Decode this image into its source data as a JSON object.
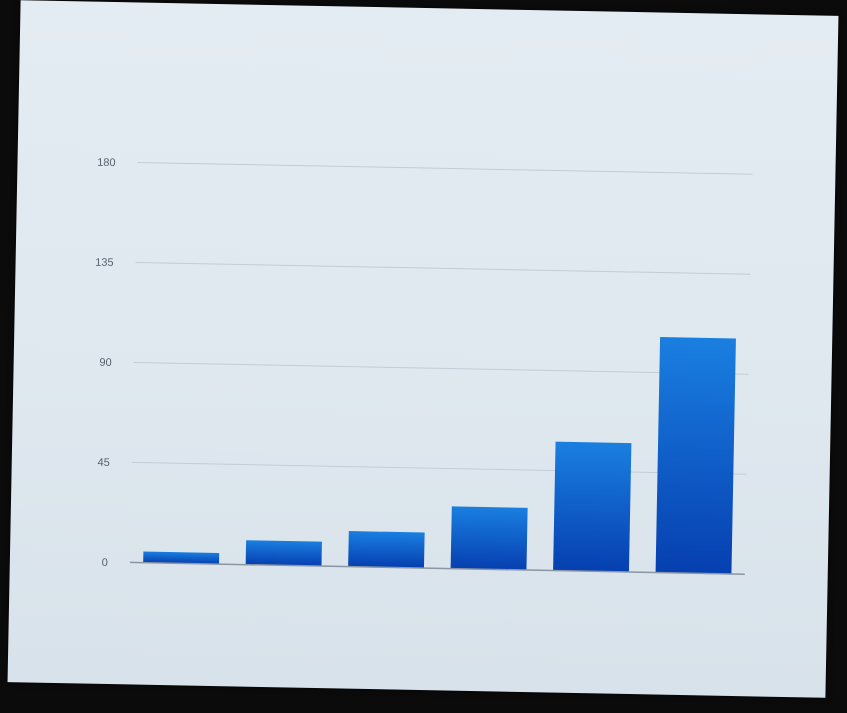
{
  "colors": {
    "bar_top": "#1a7fe0",
    "bar_bottom": "#063fb0",
    "grid": "#c2ccd6",
    "axis": "#8a96a3",
    "tick_text": "#55606b"
  },
  "chart_data": {
    "type": "bar",
    "title": "",
    "xlabel": "",
    "ylabel": "",
    "categories": [
      "",
      "",
      "",
      "",
      "",
      ""
    ],
    "values": [
      5,
      11,
      16,
      28,
      58,
      106
    ],
    "ylim": [
      0,
      180
    ],
    "yticks": [
      0,
      45,
      90,
      135,
      180
    ],
    "ytick_labels": [
      "0",
      "45",
      "90",
      "135",
      "180"
    ],
    "grid": true,
    "legend": "none"
  }
}
